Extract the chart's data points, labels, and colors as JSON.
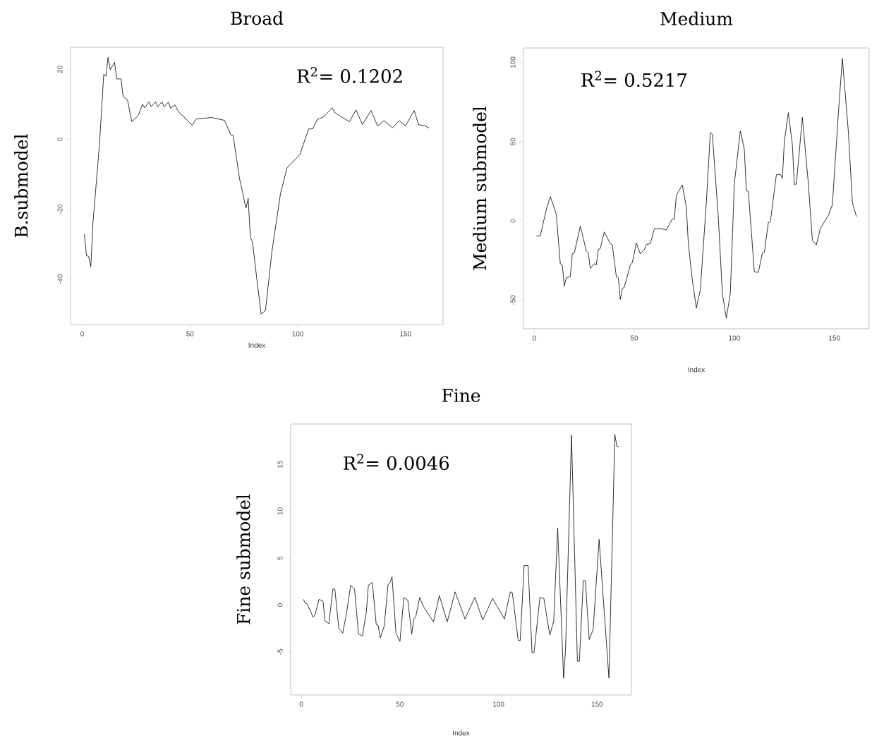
{
  "chart_data": [
    {
      "type": "line",
      "title": "Broad",
      "xlabel": "Index",
      "ylabel": "B.submodel",
      "annotations": [
        "R$^{2}$= 0.1202"
      ],
      "color": "#000000",
      "xlim": [
        -5.4,
        167.4
      ],
      "ylim": [
        -53,
        26.3
      ],
      "xticks": [
        0,
        50,
        100,
        150
      ],
      "yticks": [
        -40,
        -20,
        0,
        20
      ],
      "x": [
        1,
        2,
        3,
        4,
        5,
        8,
        10,
        11,
        12,
        13,
        15,
        16,
        18,
        19,
        21,
        23,
        26,
        28,
        29,
        31,
        32,
        34,
        35,
        37,
        38,
        40,
        41,
        43,
        45,
        48,
        51,
        53,
        60,
        66,
        69,
        70,
        73,
        75,
        76,
        77,
        78,
        79,
        81,
        83,
        85,
        88,
        92,
        95,
        101,
        105,
        107,
        109,
        112,
        114,
        116,
        117,
        120,
        124,
        127,
        130,
        134,
        137,
        140,
        144,
        147,
        150,
        154,
        156,
        159,
        161
      ],
      "values": [
        -27.2,
        -33.3,
        -33.5,
        -36.5,
        -23.8,
        -1.6,
        18.6,
        18,
        23.4,
        19.9,
        22,
        17.2,
        17.3,
        12.2,
        11.3,
        5,
        6.8,
        10,
        9,
        10.7,
        9.3,
        10.7,
        9.3,
        10.7,
        9.3,
        10.6,
        8.9,
        9.8,
        7.6,
        5.9,
        4,
        5.8,
        6.2,
        5.4,
        1.2,
        1.1,
        -11.3,
        -16.9,
        -19.7,
        -16.9,
        -28,
        -29.4,
        -39.9,
        -50,
        -49,
        -32.2,
        -15.5,
        -8.2,
        -4.4,
        2.9,
        3,
        5.6,
        6.4,
        7.7,
        9,
        7.7,
        6.5,
        5,
        8.4,
        4.2,
        8.2,
        3.8,
        5.3,
        3.3,
        5.3,
        3.8,
        8.2,
        4.2,
        3.8,
        3.2
      ]
    },
    {
      "type": "line",
      "title": "Medium",
      "xlabel": "Index",
      "ylabel": "Medium submodel",
      "annotations": [
        "R$^{2}$= 0.5217"
      ],
      "color": "#000000",
      "xlim": [
        -5.4,
        167.4
      ],
      "ylim": [
        -68.1,
        109.1
      ],
      "xticks": [
        0,
        50,
        100,
        150
      ],
      "yticks": [
        -50,
        0,
        50,
        100
      ],
      "x": [
        1,
        3,
        6,
        8,
        11,
        13,
        14,
        15,
        16,
        18,
        19,
        20,
        23,
        26,
        27,
        28,
        30,
        31,
        32,
        33,
        35,
        38,
        39,
        41,
        42,
        43,
        44,
        45,
        48,
        49,
        51,
        53,
        55,
        56,
        58,
        60,
        63,
        66,
        69,
        70,
        71,
        74,
        76,
        77,
        79,
        81,
        83,
        86,
        88,
        89,
        92,
        94,
        96,
        98,
        100,
        103,
        105,
        106,
        107,
        110,
        112,
        114,
        115,
        117,
        118,
        121,
        123,
        124,
        125,
        127,
        129,
        130,
        131,
        134,
        137,
        139,
        141,
        143,
        147,
        149,
        152,
        154,
        157,
        159,
        161
      ],
      "values": [
        -9.5,
        -9.5,
        7.1,
        15.3,
        4.2,
        -27,
        -27.8,
        -41.1,
        -35.9,
        -35.2,
        -20.8,
        -20.3,
        -3.3,
        -18.9,
        -20.3,
        -30,
        -27,
        -27.8,
        -18.1,
        -17.4,
        -7,
        -14.4,
        -15.1,
        -35.2,
        -35.9,
        -49.6,
        -42.6,
        -41.9,
        -27.8,
        -26.3,
        -14,
        -20.8,
        -18.1,
        -14.9,
        -14.4,
        -5,
        -4.8,
        -5.8,
        1.2,
        1.2,
        16,
        22.7,
        8.6,
        -14.4,
        -37.4,
        -55,
        -43.4,
        11.6,
        55.7,
        54.7,
        1.9,
        -45.6,
        -61.5,
        -45.6,
        23.5,
        56.9,
        45,
        19,
        18.7,
        -32.2,
        -32.5,
        -20.3,
        -19.9,
        -1,
        -0.7,
        29.1,
        29.4,
        26.7,
        50.2,
        68.3,
        48,
        23,
        23.2,
        65.3,
        23.5,
        -12.2,
        -15.1,
        -4.8,
        3.4,
        10.1,
        68,
        102.5,
        56.1,
        11.6,
        2.7
      ]
    },
    {
      "type": "line",
      "title": "Fine",
      "xlabel": "Index",
      "ylabel": "Fine submodel",
      "annotations": [
        "R$^{2}$= 0.0046"
      ],
      "color": "#000000",
      "xlim": [
        -5.4,
        167.4
      ],
      "ylim": [
        -9.6,
        19.3
      ],
      "xticks": [
        0,
        50,
        100,
        150
      ],
      "yticks": [
        -5,
        0,
        5,
        10,
        15
      ],
      "x": [
        1,
        2,
        3,
        6,
        7,
        9,
        11,
        12,
        14,
        16,
        17,
        19,
        21,
        23,
        25,
        27,
        29,
        31,
        33,
        34,
        36,
        38,
        39,
        40,
        42,
        44,
        45,
        46,
        48,
        50,
        52,
        54,
        56,
        57,
        58,
        60,
        62,
        67,
        70,
        74,
        78,
        83,
        88,
        92,
        97,
        103,
        106,
        107,
        110,
        111,
        113,
        115,
        117,
        118,
        121,
        123,
        126,
        128,
        130,
        133,
        134,
        137,
        140,
        141,
        143,
        144,
        146,
        148,
        151,
        156,
        159,
        160,
        161
      ],
      "values": [
        0.6,
        0.2,
        0.1,
        -1.3,
        -1,
        0.6,
        0.4,
        -1.7,
        -2,
        1.7,
        1.7,
        -2.5,
        -3,
        -0.8,
        2.1,
        1.7,
        -3.1,
        -3.3,
        -0.7,
        2.1,
        2.4,
        -2.1,
        -2.2,
        -3.5,
        -2.3,
        2.2,
        2.4,
        3,
        -3,
        -3.9,
        0.8,
        0.5,
        -3.1,
        -1.5,
        -1.3,
        0.8,
        -0.2,
        -1.8,
        1,
        -1.8,
        1.4,
        -1.5,
        0.8,
        -1.6,
        0.7,
        -1.5,
        1.4,
        1.3,
        -3.8,
        -3.8,
        4.2,
        4.2,
        -5.1,
        -5.1,
        0.8,
        0.7,
        -3.2,
        -1.7,
        8.2,
        -7.8,
        -4.7,
        18.1,
        -6,
        -6,
        2.6,
        2.6,
        -3.7,
        -2.6,
        7,
        -7.8,
        18.2,
        16.9,
        16.9
      ]
    }
  ]
}
